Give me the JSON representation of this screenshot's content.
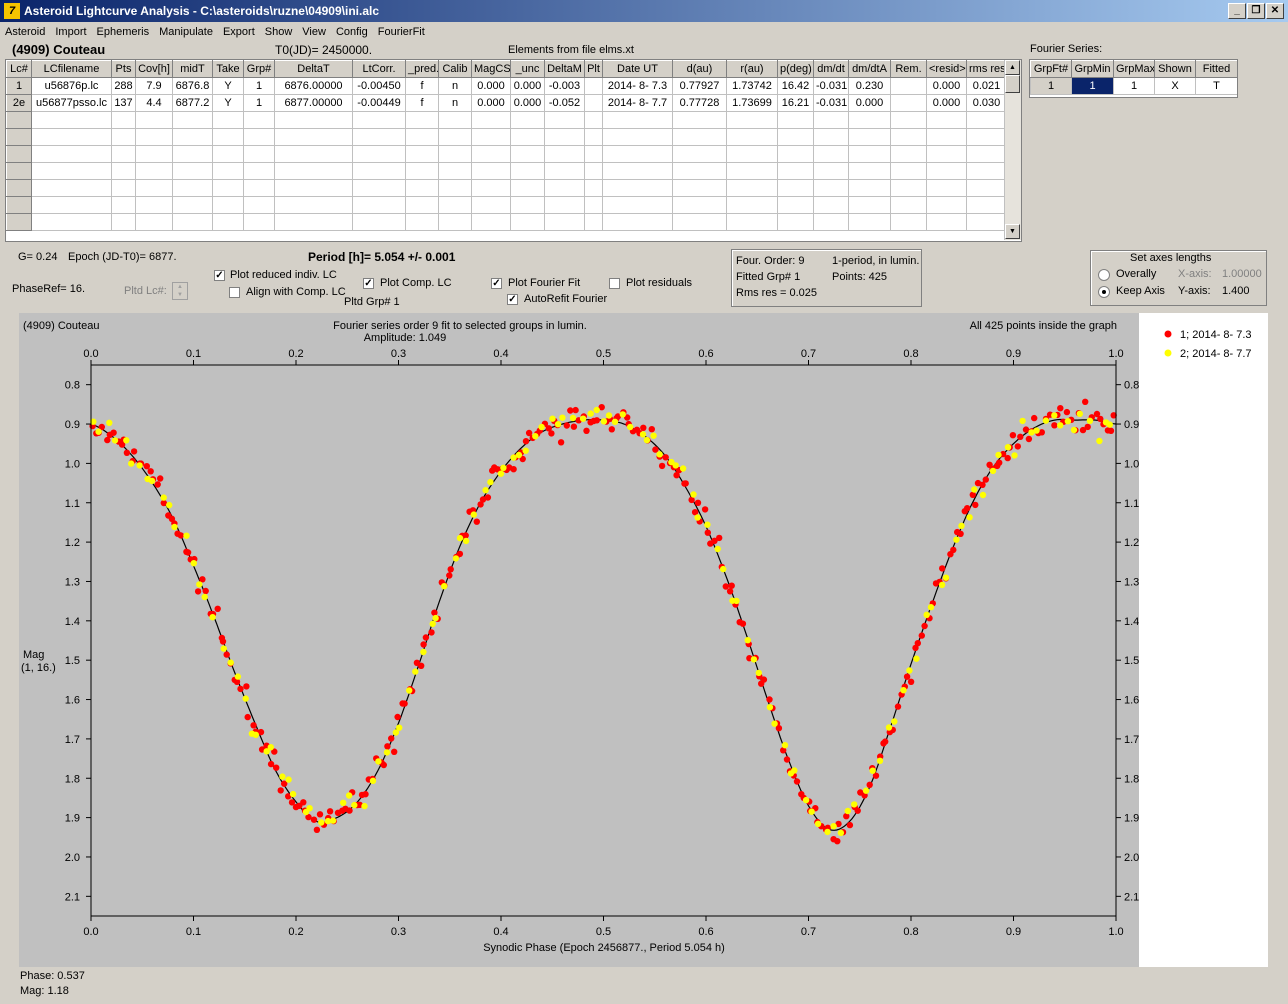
{
  "window": {
    "title": "Asteroid Lightcurve Analysis - C:\\asteroids\\ruzne\\04909\\ini.alc",
    "icon_label": "7"
  },
  "menu": [
    "Asteroid",
    "Import",
    "Ephemeris",
    "Manipulate",
    "Export",
    "Show",
    "View",
    "Config",
    "FourierFit"
  ],
  "header": {
    "asteroid": "(4909) Couteau",
    "t0": "T0(JD)= 2450000.",
    "elements": "Elements from file elms.xt"
  },
  "lc_table": {
    "columns": [
      "Lc#",
      "LCfilename",
      "Pts",
      "Cov[h]",
      "midT",
      "Take",
      "Grp#",
      "DeltaT",
      "LtCorr.",
      "_pred.",
      "Calib",
      "MagCS",
      "_unc",
      "DeltaM",
      "Plt",
      "Date UT",
      "d(au)",
      "r(au)",
      "p(deg)",
      "dm/dt",
      "dm/dtA",
      "Rem.",
      "<resid>",
      "rms res"
    ],
    "rows": [
      [
        "1",
        "u56876p.lc",
        "288",
        "7.9",
        "6876.8",
        "Y",
        "1",
        "6876.00000",
        "-0.00450",
        "f",
        "n",
        "0.000",
        "0.000",
        "-0.003",
        "",
        "2014- 8- 7.3",
        "0.77927",
        "1.73742",
        "16.42",
        "-0.031",
        "0.230",
        "",
        "0.000",
        "0.021"
      ],
      [
        "2e",
        "u56877psso.lc",
        "137",
        "4.4",
        "6877.2",
        "Y",
        "1",
        "6877.00000",
        "-0.00449",
        "f",
        "n",
        "0.000",
        "0.000",
        "-0.052",
        "",
        "2014- 8- 7.7",
        "0.77728",
        "1.73699",
        "16.21",
        "-0.031",
        "0.000",
        "",
        "0.000",
        "0.030"
      ]
    ]
  },
  "fourier_table": {
    "caption": "Fourier Series:",
    "columns": [
      "GrpFt#",
      "GrpMin",
      "GrpMax",
      "Shown",
      "Fitted"
    ],
    "rows": [
      [
        "1",
        "1",
        "1",
        "X",
        "T"
      ]
    ]
  },
  "controls": {
    "g_value": "G= 0.24",
    "epoch": "Epoch (JD-T0)= 6877.",
    "period": "Period [h]= 5.054 +/- 0.001",
    "phaseref": "PhaseRef= 16.",
    "pltd_lc": "Pltd Lc#:",
    "plot_reduced": "Plot reduced indiv. LC",
    "align_comp": "Align with Comp. LC",
    "plot_comp": "Plot Comp. LC",
    "pltd_grp": "Pltd Grp#  1",
    "plot_fourier": "Plot Fourier Fit",
    "autorefit": "AutoRefit Fourier",
    "plot_residuals": "Plot residuals",
    "checked_mark": "✓"
  },
  "fourier_info": {
    "order": "Four. Order:  9",
    "period_mode": "1-period, in lumin.",
    "fitted_grp": "Fitted Grp# 1",
    "points": "Points: 425",
    "rms": "Rms res     = 0.025"
  },
  "axes_lengths": {
    "title": "Set axes lengths",
    "overally": "Overally",
    "keep_axis": "Keep Axis",
    "x_axis_label": "X-axis:",
    "x_axis_value": "1.00000",
    "y_axis_label": "Y-axis:",
    "y_axis_value": "1.400"
  },
  "chart_texts": {
    "name": "(4909) Couteau",
    "fit_desc": "Fourier series order 9 fit to selected groups in lumin.",
    "amplitude": "Amplitude: 1.049",
    "points_info": "All 425 points inside the graph",
    "ylabel_1": "Mag",
    "ylabel_2": "(1, 16.)",
    "xlabel": "Synodic Phase (Epoch 2456877., Period 5.054 h)"
  },
  "status": {
    "phase": "Phase:  0.537",
    "mag": "Mag:    1.18"
  },
  "chart_data": {
    "type": "scatter",
    "xlim": [
      0,
      1
    ],
    "ylim": [
      2.15,
      0.75
    ],
    "y_inverted": true,
    "x_ticks": [
      0.0,
      0.1,
      0.2,
      0.3,
      0.4,
      0.5,
      0.6,
      0.7,
      0.8,
      0.9,
      1.0
    ],
    "x_tick_labels": [
      "0.0",
      "0.1",
      "0.2",
      "0.3",
      "0.4",
      "0.5",
      "0.6",
      "0.7",
      "0.8",
      "0.9",
      "1.0"
    ],
    "y_ticks": [
      0.8,
      0.9,
      1.0,
      1.1,
      1.2,
      1.3,
      1.4,
      1.5,
      1.6,
      1.7,
      1.8,
      1.9,
      2.0,
      2.1
    ],
    "y_tick_labels": [
      "0.8",
      "0.9",
      "1.0",
      "1.1",
      "1.2",
      "1.3",
      "1.4",
      "1.5",
      "1.6",
      "1.7",
      "1.8",
      "1.9",
      "2.0",
      "2.1"
    ],
    "series": [
      {
        "name": "1; 2014- 8- 7.3",
        "color": "#ff0000",
        "count": 288
      },
      {
        "name": "2; 2014- 8- 7.7",
        "color": "#ffff00",
        "count": 137
      }
    ],
    "fit": {
      "color": "#000000",
      "x": [
        0.0,
        0.02,
        0.04,
        0.06,
        0.08,
        0.1,
        0.12,
        0.14,
        0.16,
        0.18,
        0.2,
        0.22,
        0.24,
        0.26,
        0.28,
        0.3,
        0.32,
        0.34,
        0.36,
        0.38,
        0.4,
        0.42,
        0.44,
        0.46,
        0.48,
        0.5,
        0.52,
        0.54,
        0.56,
        0.58,
        0.6,
        0.62,
        0.64,
        0.66,
        0.68,
        0.7,
        0.72,
        0.74,
        0.76,
        0.78,
        0.8,
        0.82,
        0.84,
        0.86,
        0.88,
        0.9,
        0.92,
        0.94,
        0.96,
        0.98,
        1.0
      ],
      "y": [
        0.9,
        0.93,
        0.98,
        1.05,
        1.14,
        1.26,
        1.39,
        1.53,
        1.66,
        1.78,
        1.86,
        1.91,
        1.9,
        1.86,
        1.78,
        1.66,
        1.51,
        1.35,
        1.21,
        1.1,
        1.02,
        0.96,
        0.92,
        0.9,
        0.89,
        0.89,
        0.9,
        0.93,
        0.98,
        1.06,
        1.16,
        1.29,
        1.44,
        1.6,
        1.75,
        1.87,
        1.93,
        1.91,
        1.82,
        1.67,
        1.51,
        1.36,
        1.22,
        1.1,
        1.01,
        0.95,
        0.91,
        0.89,
        0.89,
        0.89,
        0.9
      ]
    }
  }
}
